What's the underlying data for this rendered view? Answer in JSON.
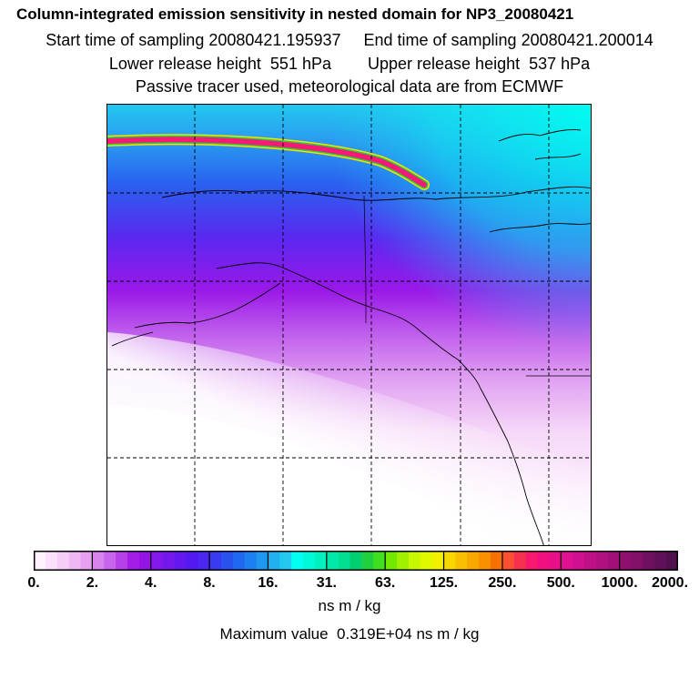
{
  "titles": {
    "main": "Column-integrated emission sensitivity in nested domain for NP3_20080421",
    "sampling": "Start time of sampling 20080421.195937     End time of sampling 20080421.200014",
    "release": "Lower release height  551 hPa        Upper release height  537 hPa",
    "info": "Passive tracer used, meteorological data are from ECMWF"
  },
  "colorbar": {
    "tick_labels": [
      "0.",
      "2.",
      "4.",
      "8.",
      "16.",
      "31.",
      "63.",
      "125.",
      "250.",
      "500.",
      "1000.",
      "2000."
    ],
    "units": "ns m / kg",
    "colors": [
      "#fdf2fd",
      "#fbe0fb",
      "#f6cdf7",
      "#f0b7f4",
      "#e7a0f0",
      "#d984ee",
      "#c964ec",
      "#b640ea",
      "#a41ce8",
      "#9414e6",
      "#8418ea",
      "#7418ee",
      "#6418f0",
      "#5418f0",
      "#4a28f0",
      "#3a3af0",
      "#2a50f0",
      "#2068f0",
      "#1e80f0",
      "#1e98f0",
      "#20b0f0",
      "#22c8f0",
      "#00fff0",
      "#00f8d8",
      "#00f0c0",
      "#00e8a8",
      "#00e090",
      "#00d070",
      "#20d040",
      "#40e020",
      "#70e800",
      "#a0f000",
      "#c8f800",
      "#e0f800",
      "#f0f000",
      "#f8d800",
      "#f8c000",
      "#f8a800",
      "#f89000",
      "#f87000",
      "#f85030",
      "#f83050",
      "#f81870",
      "#f01080",
      "#e81088",
      "#e01090",
      "#d01090",
      "#c01088",
      "#b01080",
      "#a01078",
      "#901070",
      "#801068",
      "#701060",
      "#601058",
      "#501050"
    ]
  },
  "footer": {
    "max_value": "Maximum value  0.319E+04 ns m / kg"
  }
}
